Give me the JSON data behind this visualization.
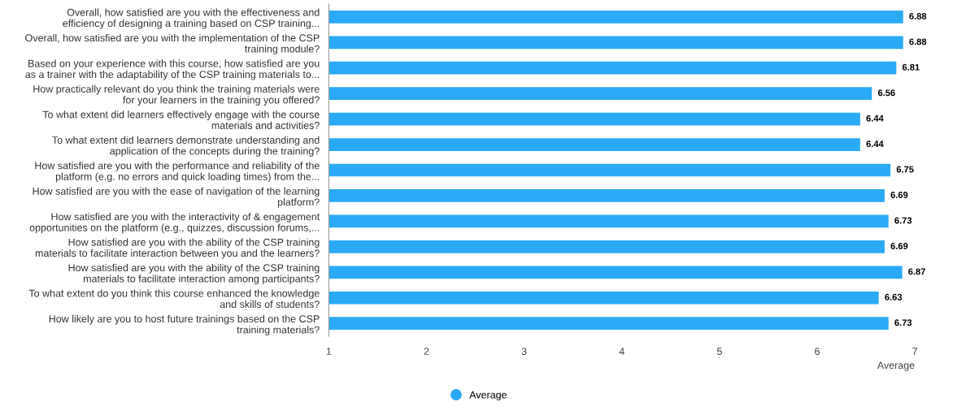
{
  "chart_data": {
    "type": "bar",
    "orientation": "horizontal",
    "categories": [
      "Overall, how satisfied are you with the effectiveness and\nefficiency of designing a training based on CSP training...",
      "Overall, how satisfied are you with the implementation of the CSP\ntraining module?",
      "Based on your experience with this course, how satisfied are you\nas a trainer with the adaptability of the CSP training materials to...",
      "How practically relevant do you think the training materials were\nfor your learners in the training you offered?",
      "To what extent did learners effectively engage with the course\nmaterials and activities?",
      "To what extent did learners demonstrate understanding and\napplication of the concepts during the training?",
      "How satisfied are you with the performance and reliability of the\nplatform (e.g. no errors and quick loading times) from the...",
      "How satisfied are you with the ease of navigation of the learning\nplatform?",
      "How satisfied are you with the interactivity of & engagement\nopportunities on the platform (e.g., quizzes, discussion forums,...",
      "How satisfied are you with the ability of the CSP training\nmaterials to facilitate interaction between you and the learners?",
      "How satisfied are you with the ability of the CSP training\nmaterials to facilitate interaction among participants?",
      "To what extent do you think this course enhanced the knowledge\nand skills of students?",
      "How likely are you to host future trainings based on the CSP\ntraining materials?"
    ],
    "series": [
      {
        "name": "Average",
        "color": "#2aaaf6",
        "values": [
          6.88,
          6.88,
          6.81,
          6.56,
          6.44,
          6.44,
          6.75,
          6.69,
          6.73,
          6.69,
          6.87,
          6.63,
          6.73
        ]
      }
    ],
    "xlabel": "Average",
    "xlim": [
      1,
      7
    ],
    "xticks": [
      1,
      2,
      3,
      4,
      5,
      6,
      7
    ],
    "data_labels": true,
    "legend": "bottom",
    "grid": false
  }
}
